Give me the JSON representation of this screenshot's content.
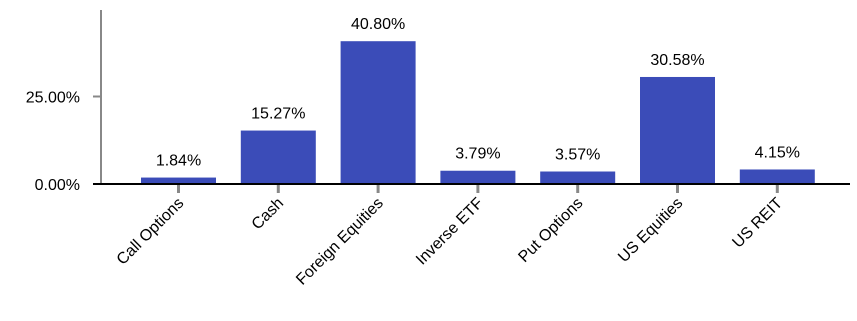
{
  "chart_data": {
    "type": "bar",
    "categories": [
      "Call Options",
      "Cash",
      "Foreign Equities",
      "Inverse ETF",
      "Put Options",
      "US Equities",
      "US REIT"
    ],
    "values": [
      1.84,
      15.27,
      40.8,
      3.79,
      3.57,
      30.58,
      4.15
    ],
    "value_labels": [
      "1.84%",
      "15.27%",
      "40.80%",
      "3.79%",
      "3.57%",
      "30.58%",
      "4.15%"
    ],
    "yticks": [
      0,
      25
    ],
    "ytick_labels": [
      "0.00%",
      "25.00%"
    ],
    "ylim": [
      0,
      50
    ],
    "title": "",
    "xlabel": "",
    "ylabel": "",
    "grid": false,
    "legend": "none",
    "colors": {
      "bar": "#3b4cb8",
      "axis": "#000000",
      "y_axis": "#888888",
      "tick": "#888888"
    }
  }
}
